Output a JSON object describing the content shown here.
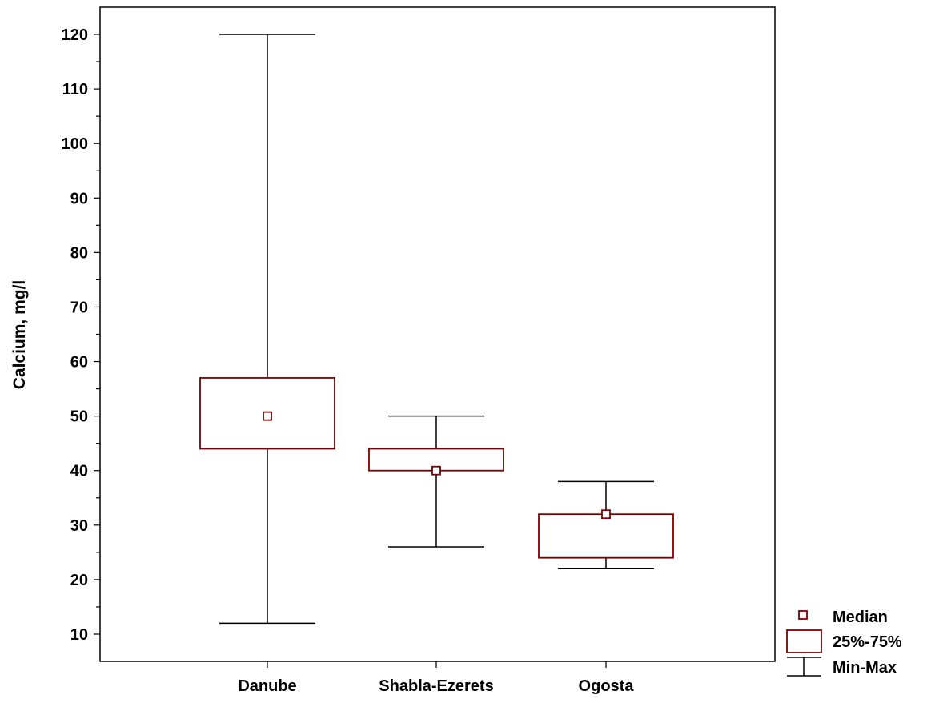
{
  "chart_data": {
    "type": "box",
    "title": "",
    "xlabel": "",
    "ylabel": "Calcium, mg/l",
    "ylim": [
      5,
      125
    ],
    "yticks": [
      10,
      20,
      30,
      40,
      50,
      60,
      70,
      80,
      90,
      100,
      110,
      120
    ],
    "categories": [
      "Danube",
      "Shabla-Ezerets",
      "Ogosta"
    ],
    "boxes": [
      {
        "category": "Danube",
        "min": 12,
        "q1": 44,
        "median": 50,
        "q3": 57,
        "max": 120
      },
      {
        "category": "Shabla-Ezerets",
        "min": 26,
        "q1": 40,
        "median": 40,
        "q3": 44,
        "max": 50
      },
      {
        "category": "Ogosta",
        "min": 22,
        "q1": 24,
        "median": 32,
        "q3": 32,
        "max": 38
      }
    ],
    "legend": {
      "position": "bottom-right",
      "items": [
        {
          "label": "Median",
          "symbol": "square-marker"
        },
        {
          "label": "25%-75%",
          "symbol": "box"
        },
        {
          "label": "Min-Max",
          "symbol": "whisker"
        }
      ]
    },
    "colors": {
      "box": "#7b0000",
      "whisker": "#000000"
    }
  }
}
